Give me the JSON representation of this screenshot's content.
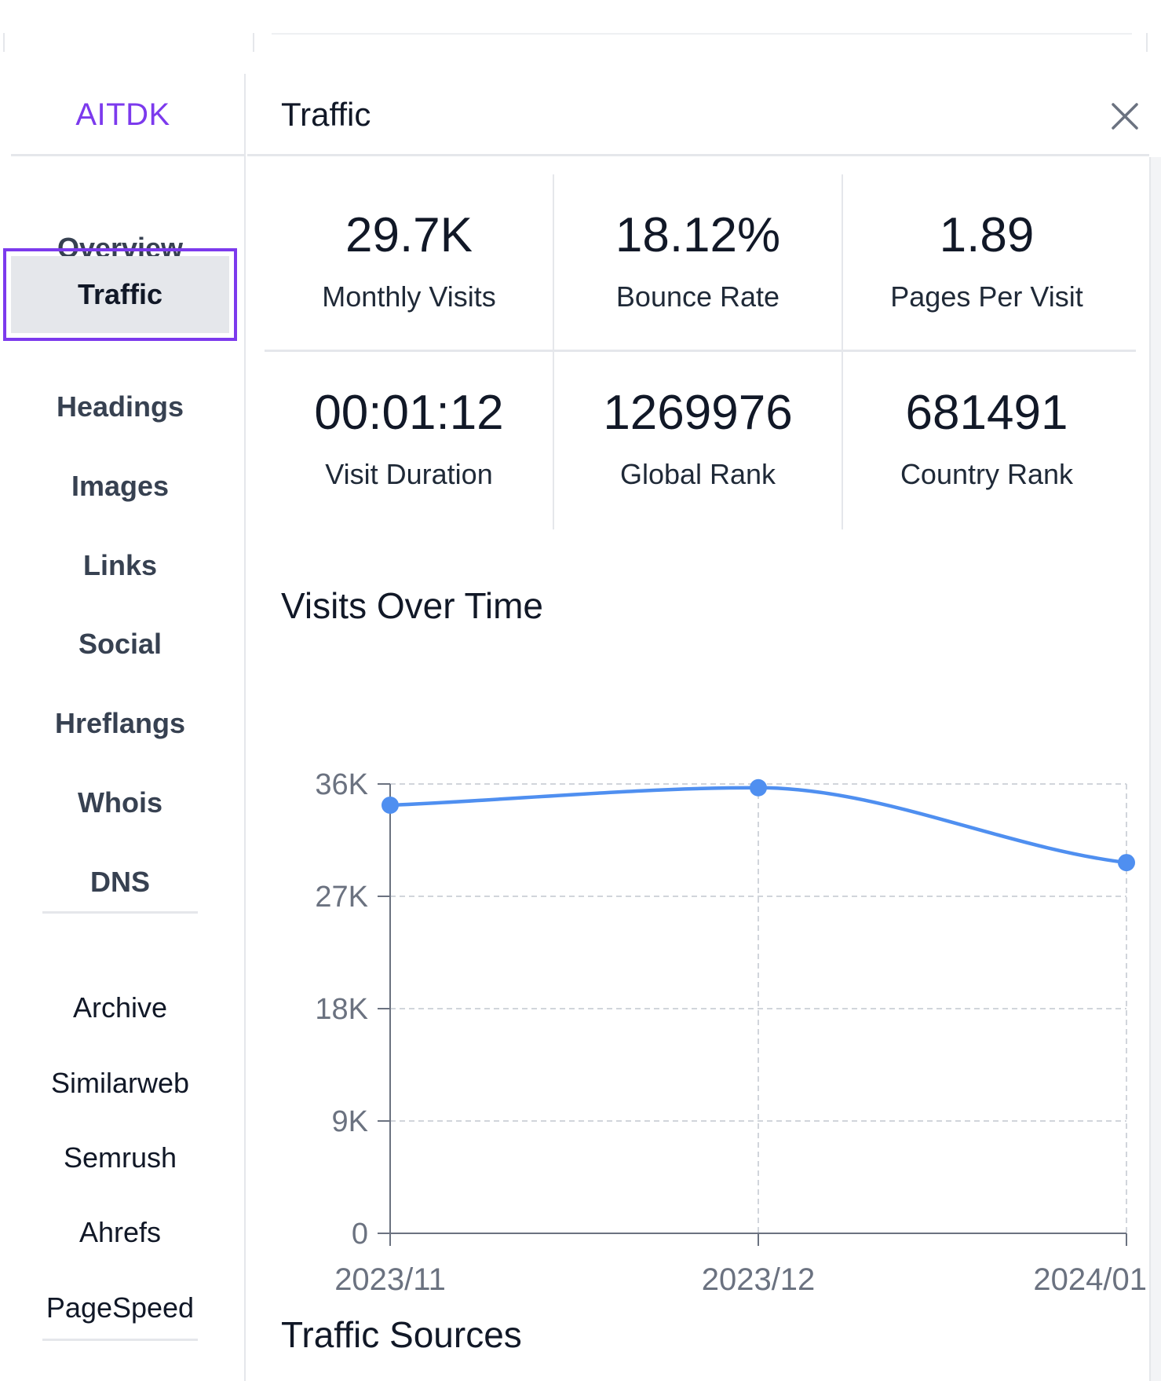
{
  "sidebar": {
    "brand": "AITDK",
    "nav": [
      {
        "label": "Overview"
      },
      {
        "label": "Traffic",
        "active": true
      },
      {
        "label": "Headings"
      },
      {
        "label": "Images"
      },
      {
        "label": "Links"
      },
      {
        "label": "Social"
      },
      {
        "label": "Hreflangs"
      },
      {
        "label": "Whois"
      },
      {
        "label": "DNS"
      }
    ],
    "external": [
      {
        "label": "Archive"
      },
      {
        "label": "Similarweb"
      },
      {
        "label": "Semrush"
      },
      {
        "label": "Ahrefs"
      },
      {
        "label": "PageSpeed"
      }
    ]
  },
  "panel": {
    "title": "Traffic",
    "close_icon": "close-icon"
  },
  "stats": [
    {
      "value": "29.7K",
      "label": "Monthly Visits"
    },
    {
      "value": "18.12%",
      "label": "Bounce Rate"
    },
    {
      "value": "1.89",
      "label": "Pages Per Visit"
    },
    {
      "value": "00:01:12",
      "label": "Visit Duration"
    },
    {
      "value": "1269976",
      "label": "Global Rank"
    },
    {
      "value": "681491",
      "label": "Country Rank"
    }
  ],
  "sections": {
    "visits_title": "Visits Over Time",
    "sources_title": "Traffic Sources"
  },
  "chart_data": {
    "type": "line",
    "title": "Visits Over Time",
    "categories": [
      "2023/11",
      "2023/12",
      "2024/01"
    ],
    "series": [
      {
        "values": [
          34300,
          35700,
          29700
        ],
        "color": "#4f8ff0"
      }
    ],
    "yticks": [
      "0",
      "9K",
      "18K",
      "27K",
      "36K"
    ],
    "ylim": [
      0,
      36000
    ],
    "grid": true,
    "smooth": true
  },
  "colors": {
    "accent": "#7c3aed",
    "line": "#4f8ff0"
  }
}
